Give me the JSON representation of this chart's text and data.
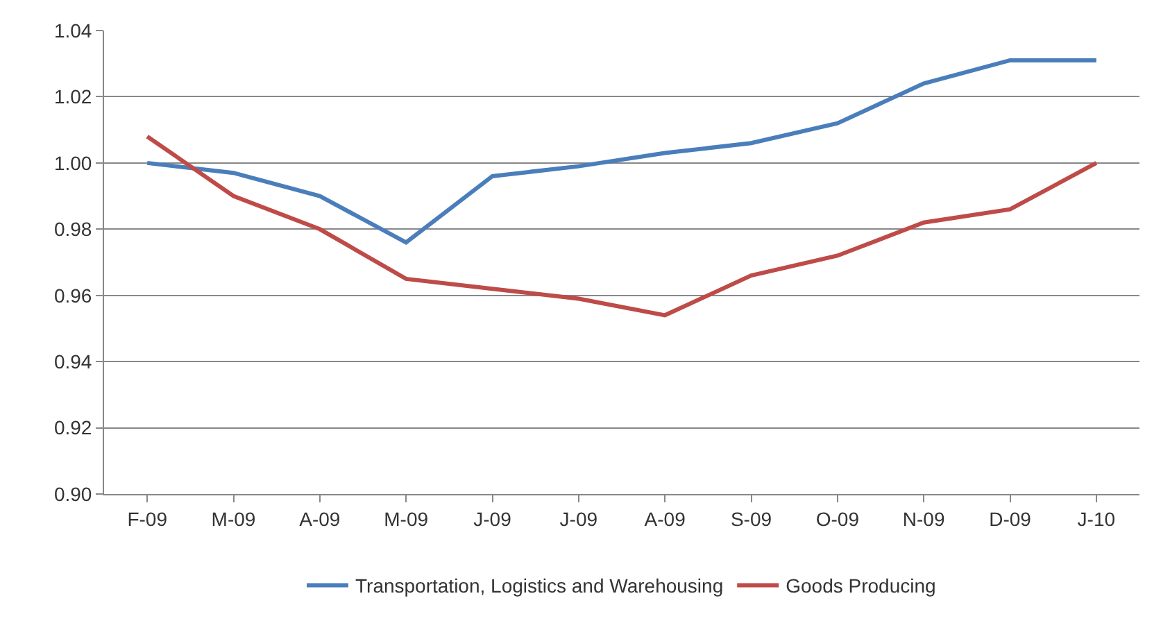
{
  "chart_data": {
    "type": "line",
    "categories": [
      "F-09",
      "M-09",
      "A-09",
      "M-09",
      "J-09",
      "J-09",
      "A-09",
      "S-09",
      "O-09",
      "N-09",
      "D-09",
      "J-10"
    ],
    "series": [
      {
        "name": "Transportation, Logistics and Warehousing",
        "color": "#4a7ebb",
        "values": [
          1.0,
          0.997,
          0.99,
          0.976,
          0.996,
          0.999,
          1.003,
          1.006,
          1.012,
          1.024,
          1.031,
          1.031
        ]
      },
      {
        "name": "Goods Producing",
        "color": "#be4b48",
        "values": [
          1.008,
          0.99,
          0.98,
          0.965,
          0.962,
          0.959,
          0.954,
          0.966,
          0.972,
          0.982,
          0.986,
          1.0
        ]
      }
    ],
    "ylim": [
      0.9,
      1.04
    ],
    "yticks": [
      {
        "value": 0.9,
        "label": "0.90"
      },
      {
        "value": 0.92,
        "label": "0.92"
      },
      {
        "value": 0.94,
        "label": "0.94"
      },
      {
        "value": 0.96,
        "label": "0.96"
      },
      {
        "value": 0.98,
        "label": "0.98"
      },
      {
        "value": 1.0,
        "label": "1.00"
      },
      {
        "value": 1.02,
        "label": "1.02"
      },
      {
        "value": 1.04,
        "label": "1.04"
      }
    ],
    "grid": "y",
    "legend": "bottom",
    "marker": "none",
    "line_style": "solid"
  }
}
